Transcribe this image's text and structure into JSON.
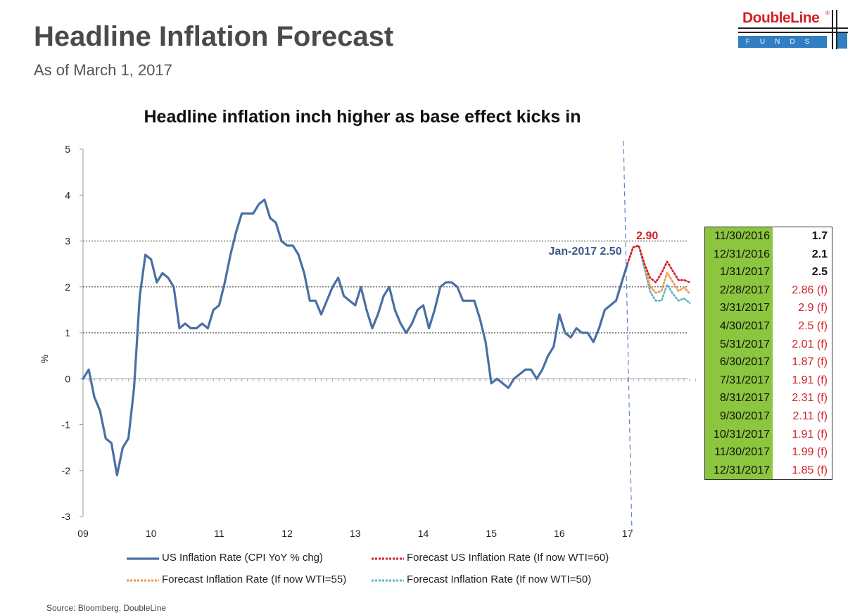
{
  "header": {
    "title": "Headline Inflation Forecast",
    "subtitle": "As of March 1, 2017",
    "logo_name": "DoubleLine",
    "logo_reg": "®",
    "logo_funds": "FUNDS"
  },
  "colors": {
    "actual": "#4a6fa5",
    "wti60": "#d42027",
    "wti55": "#f0954a",
    "wti50": "#5fb3c4",
    "table_green": "#8cc63f"
  },
  "chart_data": {
    "type": "line",
    "title": "Headline inflation inch higher as base effect kicks in",
    "ylabel": "%",
    "xlabel": "",
    "ylim": [
      -3,
      5
    ],
    "yticks": [
      "-3",
      "-2",
      "-1",
      "0",
      "1",
      "2",
      "3",
      "4",
      "5"
    ],
    "xlim": [
      2009,
      2018
    ],
    "xticks": [
      "09",
      "10",
      "11",
      "12",
      "13",
      "14",
      "15",
      "16",
      "17"
    ],
    "reference_lines": [
      1,
      2,
      3
    ],
    "cutoff_label": "2017",
    "series": [
      {
        "name": "US Inflation Rate (CPI YoY % chg)",
        "start": "2009-01",
        "values": [
          0.0,
          0.2,
          -0.4,
          -0.7,
          -1.3,
          -1.4,
          -2.1,
          -1.5,
          -1.3,
          -0.2,
          1.8,
          2.7,
          2.6,
          2.1,
          2.3,
          2.2,
          2.0,
          1.1,
          1.2,
          1.1,
          1.1,
          1.2,
          1.1,
          1.5,
          1.6,
          2.1,
          2.7,
          3.2,
          3.6,
          3.6,
          3.6,
          3.8,
          3.9,
          3.5,
          3.4,
          3.0,
          2.9,
          2.9,
          2.7,
          2.3,
          1.7,
          1.7,
          1.4,
          1.7,
          2.0,
          2.2,
          1.8,
          1.7,
          1.6,
          2.0,
          1.5,
          1.1,
          1.4,
          1.8,
          2.0,
          1.5,
          1.2,
          1.0,
          1.2,
          1.5,
          1.6,
          1.1,
          1.5,
          2.0,
          2.1,
          2.1,
          2.0,
          1.7,
          1.7,
          1.7,
          1.3,
          0.8,
          -0.1,
          0.0,
          -0.1,
          -0.2,
          0.0,
          0.1,
          0.2,
          0.2,
          0.0,
          0.2,
          0.5,
          0.7,
          1.4,
          1.0,
          0.9,
          1.1,
          1.0,
          1.0,
          0.8,
          1.1,
          1.5,
          1.6,
          1.7,
          2.1,
          2.5
        ]
      },
      {
        "name": "Forecast US Inflation Rate (If now WTI=60)",
        "start": "2017-01",
        "values": [
          2.5,
          2.86,
          2.9,
          2.5,
          2.2,
          2.1,
          2.3,
          2.55,
          2.35,
          2.15,
          2.15,
          2.1
        ]
      },
      {
        "name": "Forecast Inflation Rate (If now WTI=55)",
        "start": "2017-01",
        "values": [
          2.5,
          2.86,
          2.9,
          2.5,
          2.01,
          1.87,
          1.91,
          2.31,
          2.11,
          1.91,
          1.99,
          1.85
        ]
      },
      {
        "name": "Forecast Inflation Rate (If now WTI=50)",
        "start": "2017-01",
        "values": [
          2.5,
          2.86,
          2.9,
          2.4,
          1.9,
          1.7,
          1.7,
          2.05,
          1.85,
          1.7,
          1.75,
          1.65
        ]
      }
    ],
    "annotations": [
      {
        "text": "Jan-2017 2.50",
        "x": "2017-01",
        "y": 2.5
      },
      {
        "text": "2.90",
        "x": "2017-03",
        "y": 2.9
      }
    ]
  },
  "forecast_table": [
    {
      "date": "11/30/2016",
      "value": "1.7",
      "kind": "actual"
    },
    {
      "date": "12/31/2016",
      "value": "2.1",
      "kind": "actual"
    },
    {
      "date": "1/31/2017",
      "value": "2.5",
      "kind": "actual"
    },
    {
      "date": "2/28/2017",
      "value": "2.86 (f)",
      "kind": "forecast"
    },
    {
      "date": "3/31/2017",
      "value": "2.9 (f)",
      "kind": "forecast"
    },
    {
      "date": "4/30/2017",
      "value": "2.5 (f)",
      "kind": "forecast"
    },
    {
      "date": "5/31/2017",
      "value": "2.01 (f)",
      "kind": "forecast"
    },
    {
      "date": "6/30/2017",
      "value": "1.87 (f)",
      "kind": "forecast"
    },
    {
      "date": "7/31/2017",
      "value": "1.91 (f)",
      "kind": "forecast"
    },
    {
      "date": "8/31/2017",
      "value": "2.31 (f)",
      "kind": "forecast"
    },
    {
      "date": "9/30/2017",
      "value": "2.11 (f)",
      "kind": "forecast"
    },
    {
      "date": "10/31/2017",
      "value": "1.91 (f)",
      "kind": "forecast"
    },
    {
      "date": "11/30/2017",
      "value": "1.99 (f)",
      "kind": "forecast"
    },
    {
      "date": "12/31/2017",
      "value": "1.85 (f)",
      "kind": "forecast"
    }
  ],
  "source": "Source: Bloomberg, DoubleLine"
}
